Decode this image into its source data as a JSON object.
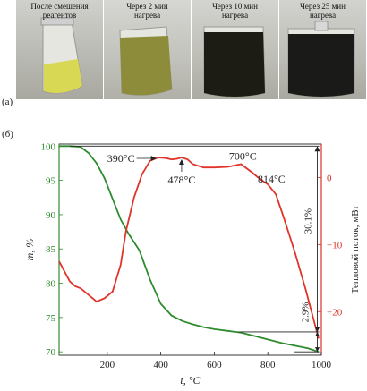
{
  "panel_a": {
    "label": "(а)",
    "photos": [
      {
        "line1": "После смешения",
        "line2": "реагентов",
        "liquid": "#d8d855"
      },
      {
        "line1": "Через 2 мин",
        "line2": "нагрева",
        "liquid": "#8c8c3a"
      },
      {
        "line1": "Через 10 мин",
        "line2": "нагрева",
        "liquid": "#1c1c14"
      },
      {
        "line1": "Через 25 мин",
        "line2": "нагрева",
        "liquid": "#1a1a18"
      }
    ]
  },
  "panel_b": {
    "label": "(б)"
  },
  "chart_data": {
    "type": "line",
    "xlabel": "t, °C",
    "ylabel_left": "m, %",
    "ylabel_right": "Тепловой поток, мВт",
    "xlim": [
      20,
      1000
    ],
    "xticks": [
      200,
      400,
      600,
      800,
      1000
    ],
    "ylim_left": [
      69.5,
      100.3
    ],
    "yticks_left": [
      70,
      75,
      80,
      85,
      90,
      95,
      100
    ],
    "ylim_right": [
      -26.5,
      5
    ],
    "yticks_right": [
      0,
      -10,
      -20
    ],
    "colors": {
      "mass": "#2e8b2e",
      "heat": "#e0342a",
      "left_axis": "#2e8b2e",
      "right_axis": "#d9332a"
    },
    "series": [
      {
        "axis": "left",
        "x": [
          20,
          60,
          100,
          130,
          160,
          190,
          220,
          250,
          280,
          320,
          360,
          400,
          440,
          480,
          520,
          560,
          600,
          650,
          700,
          750,
          800,
          850,
          900,
          950,
          990
        ],
        "values": [
          100,
          100,
          99.9,
          99.0,
          97.5,
          95.3,
          92.3,
          89.3,
          87.2,
          84.8,
          80.5,
          77.0,
          75.3,
          74.5,
          74.0,
          73.6,
          73.3,
          73.05,
          72.8,
          72.3,
          71.8,
          71.3,
          70.9,
          70.5,
          70.0
        ]
      },
      {
        "axis": "right",
        "x": [
          20,
          40,
          60,
          80,
          100,
          130,
          160,
          190,
          220,
          250,
          270,
          300,
          330,
          360,
          390,
          420,
          440,
          460,
          478,
          500,
          520,
          560,
          600,
          650,
          700,
          740,
          770,
          800,
          830,
          860,
          900,
          940,
          970,
          990
        ],
        "values": [
          -12.5,
          -14.0,
          -15.5,
          -16.2,
          -16.5,
          -17.5,
          -18.5,
          -18.0,
          -17.0,
          -13.0,
          -8.0,
          -3.0,
          0.5,
          2.5,
          3.0,
          2.9,
          2.7,
          2.8,
          3.0,
          2.7,
          2.0,
          1.5,
          1.5,
          1.6,
          2.0,
          0.8,
          -0.2,
          -1.0,
          -2.5,
          -6.0,
          -11.0,
          -16.5,
          -21.0,
          -24.0
        ]
      }
    ],
    "annotations": [
      {
        "text": "390°C",
        "x": 390,
        "y_right": 3.0
      },
      {
        "text": "478°C",
        "x": 478,
        "y_right": 3.0
      },
      {
        "text": "700°C",
        "x": 700,
        "y_right": 2.0
      },
      {
        "text": "814°C",
        "x": 814,
        "y_right": -1.3
      },
      {
        "text": "30.1%"
      },
      {
        "text": "2.9%"
      }
    ]
  }
}
